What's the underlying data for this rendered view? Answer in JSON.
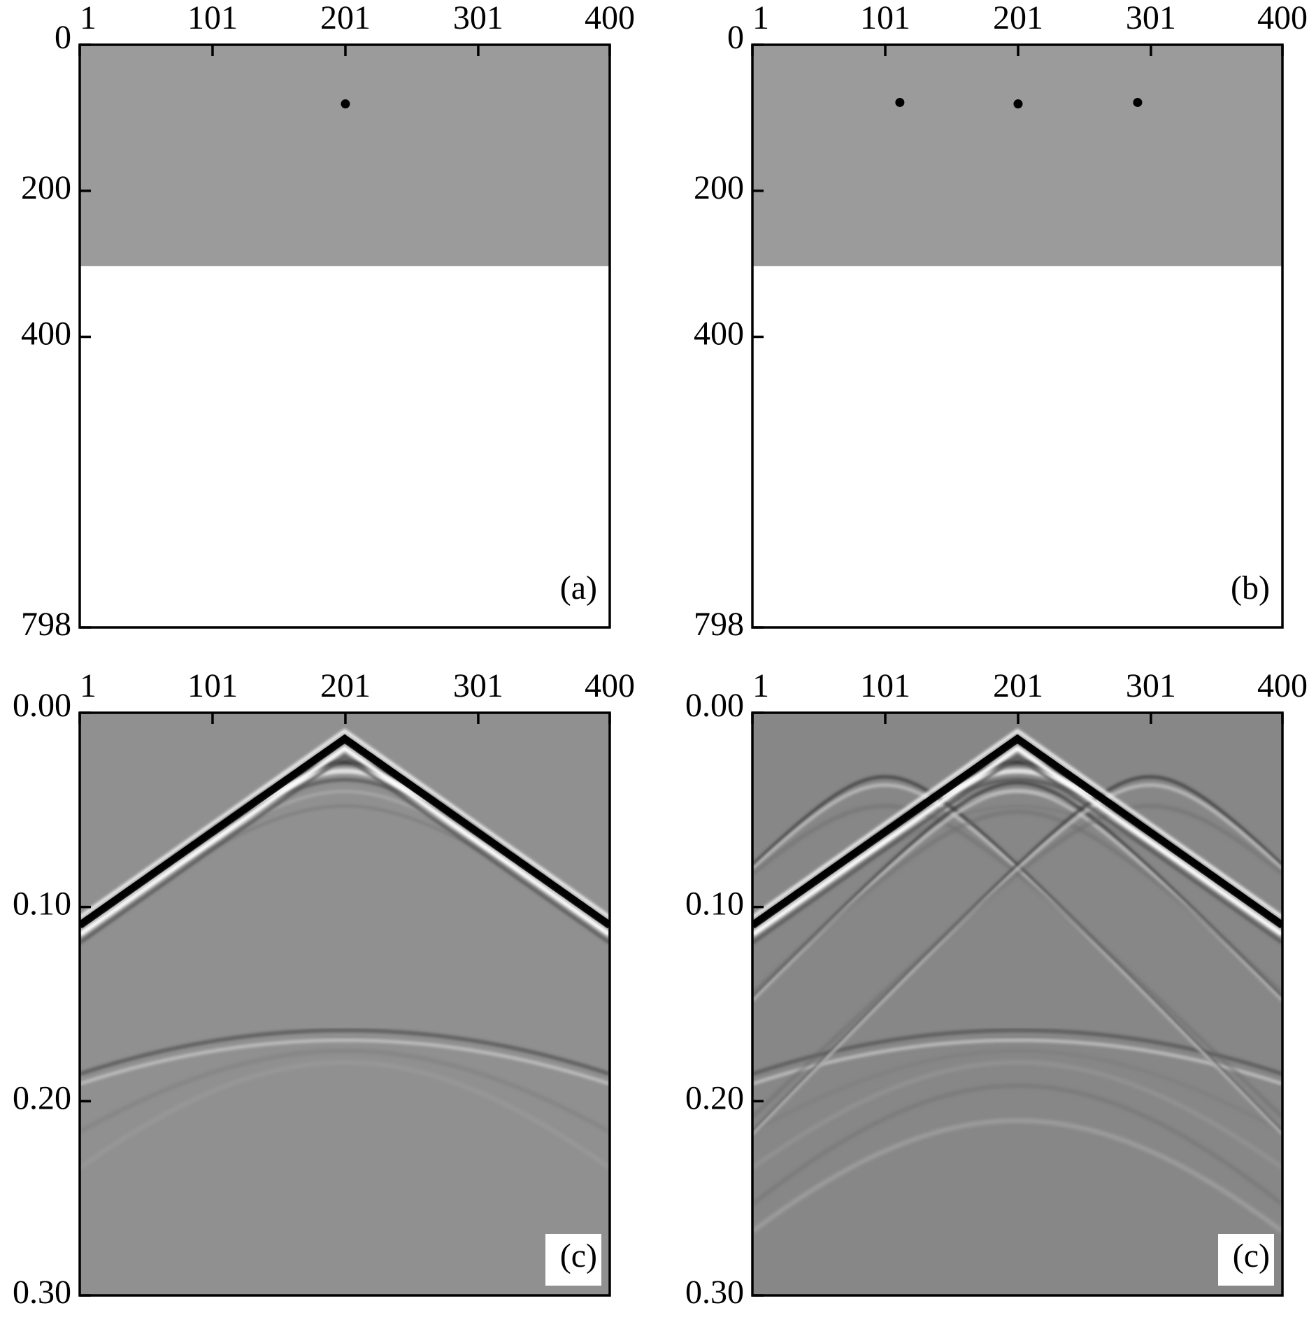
{
  "chart_data": [
    {
      "type": "model",
      "xlim": [
        1,
        400
      ],
      "xticks": [
        1,
        101,
        201,
        301,
        400
      ],
      "ylim": [
        0,
        798
      ],
      "yticks": [
        0,
        200,
        400,
        798
      ],
      "layer_depth": 303,
      "layer_color": "#9b9b9b",
      "point_color": "#000000",
      "points": {
        "x": [
          201
        ],
        "y": [
          81
        ]
      },
      "panel_label": "(a)"
    },
    {
      "type": "model",
      "xlim": [
        1,
        400
      ],
      "xticks": [
        1,
        101,
        201,
        301,
        400
      ],
      "ylim": [
        0,
        798
      ],
      "yticks": [
        0,
        200,
        400,
        798
      ],
      "layer_depth": 303,
      "layer_color": "#9b9b9b",
      "point_color": "#000000",
      "points": {
        "x": [
          112,
          201,
          291
        ],
        "y": [
          79,
          81,
          79
        ]
      },
      "panel_label": "(b)"
    },
    {
      "type": "gather",
      "xlim": [
        1,
        400
      ],
      "xticks": [
        1,
        101,
        201,
        301,
        400
      ],
      "ylim": [
        0,
        0.3
      ],
      "yticks": [
        {
          "value": 0,
          "label": "0.00"
        },
        {
          "value": 0.1,
          "label": "0.10"
        },
        {
          "value": 0.2,
          "label": "0.20"
        },
        {
          "value": 0.3,
          "label": "0.30"
        }
      ],
      "background": "#909090",
      "panel_label": "(c)"
    },
    {
      "type": "gather",
      "xlim": [
        1,
        400
      ],
      "xticks": [
        1,
        101,
        201,
        301,
        400
      ],
      "ylim": [
        0,
        0.3
      ],
      "yticks": [
        {
          "value": 0,
          "label": "0.00"
        },
        {
          "value": 0.1,
          "label": "0.10"
        },
        {
          "value": 0.2,
          "label": "0.20"
        },
        {
          "value": 0.3,
          "label": "0.30"
        }
      ],
      "background": "#878787",
      "panel_label": "(c)"
    }
  ]
}
